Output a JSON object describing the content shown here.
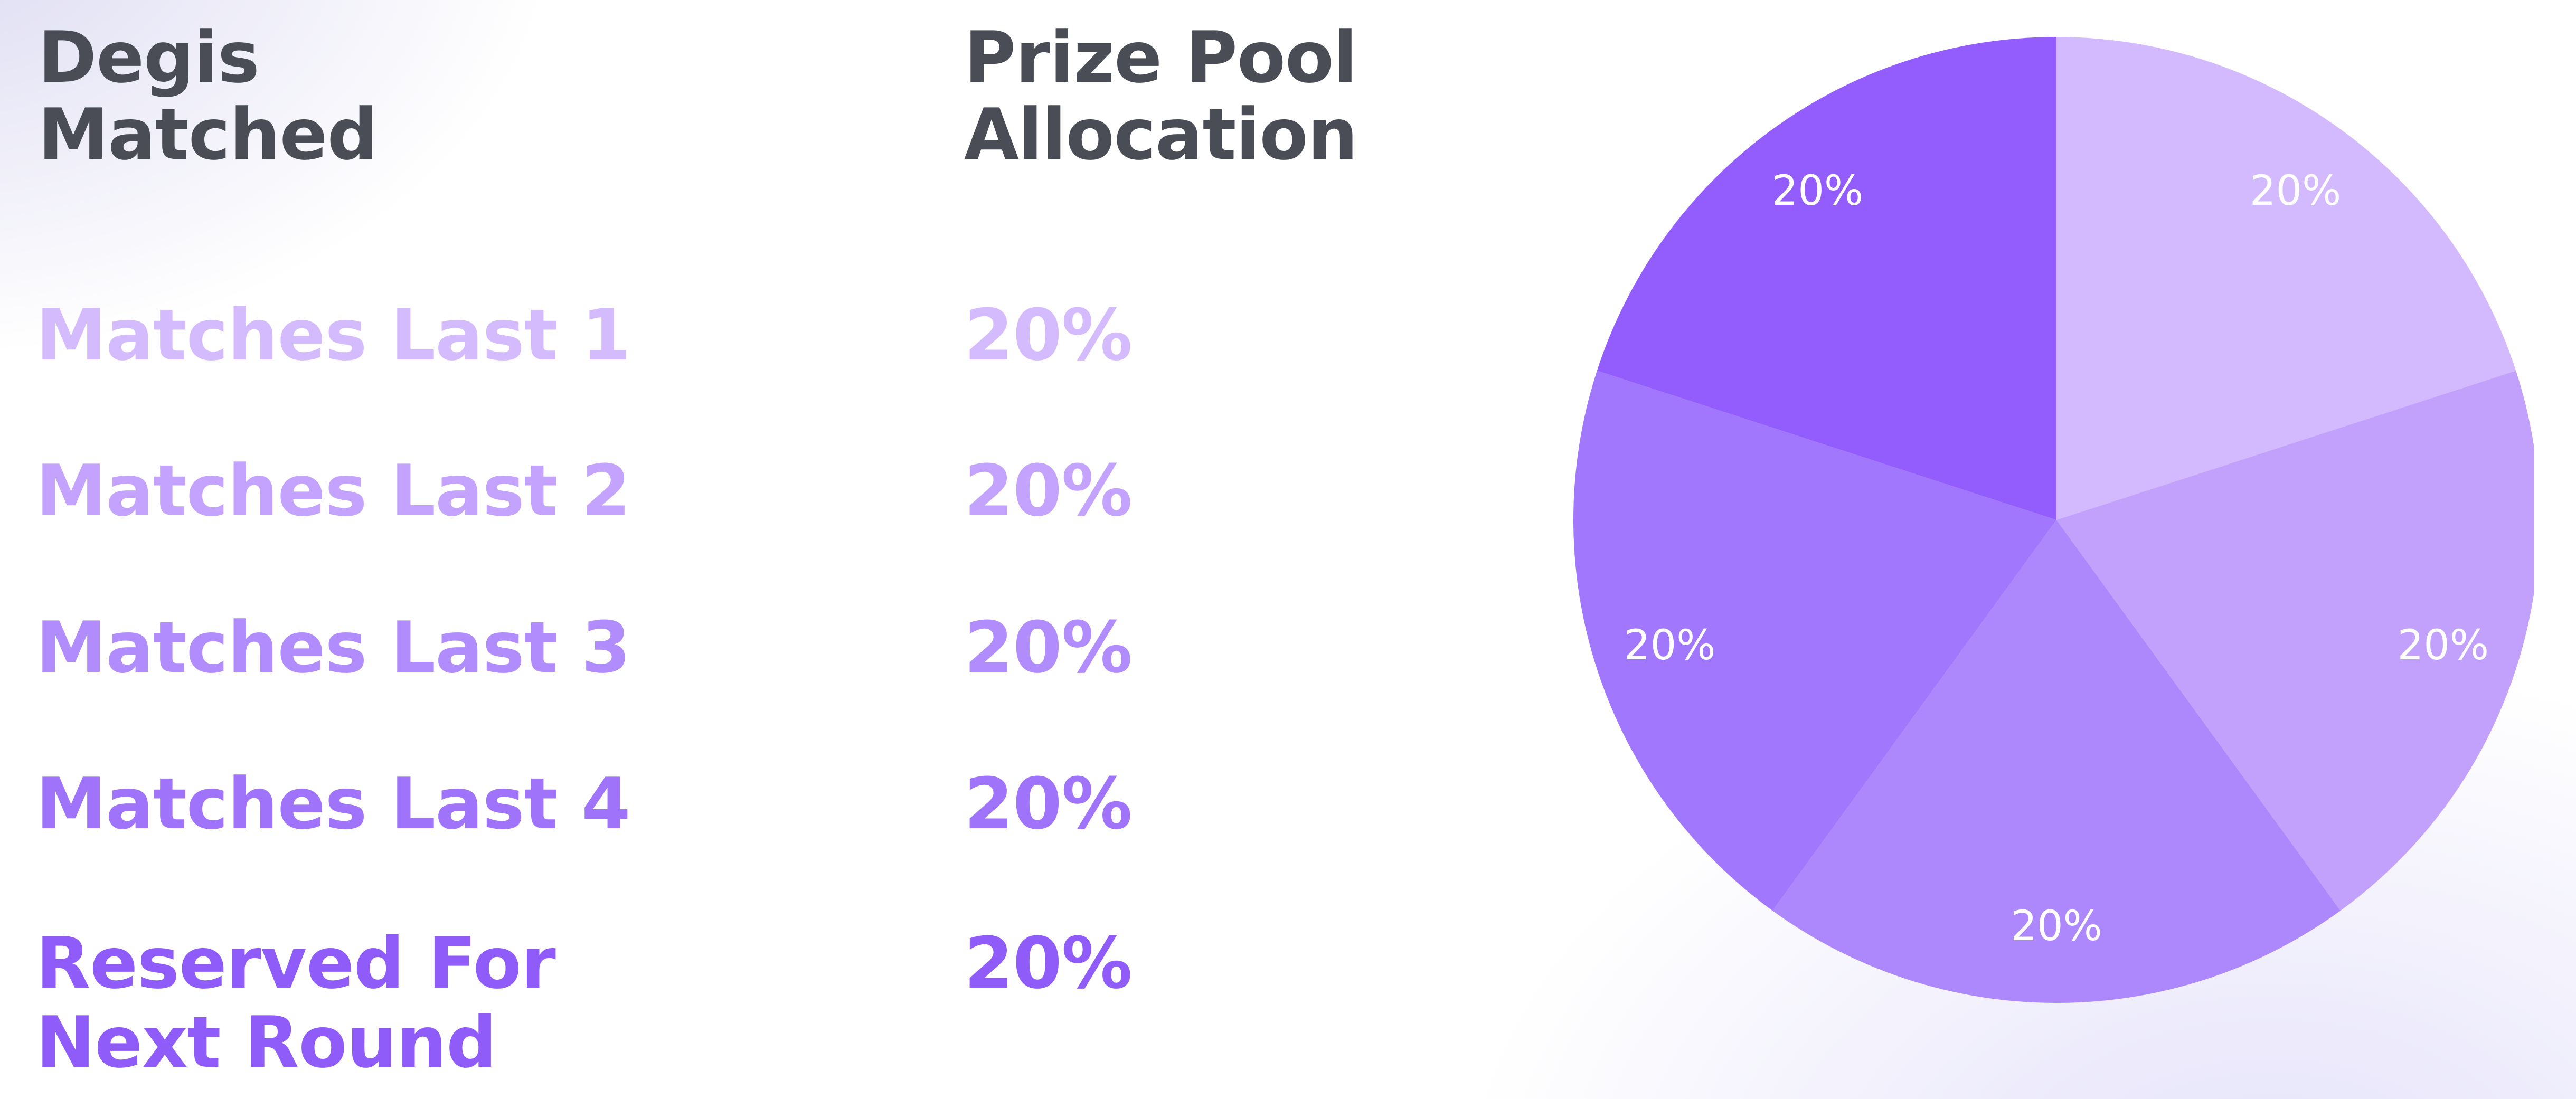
{
  "headers": {
    "degis_matched": "Degis\nMatched",
    "prize_pool": "Prize Pool\nAllocation"
  },
  "rows": [
    {
      "label": "Matches Last 1",
      "value": "20%",
      "color": "#d4bbfd"
    },
    {
      "label": "Matches Last 2",
      "value": "20%",
      "color": "#c3a3fd"
    },
    {
      "label": "Matches Last 3",
      "value": "20%",
      "color": "#b08cfc"
    },
    {
      "label": "Matches Last 4",
      "value": "20%",
      "color": "#9f74fb"
    },
    {
      "label": "Reserved For\nNext Round",
      "value": "20%",
      "color": "#8f5cfa"
    }
  ],
  "chart_data": {
    "type": "pie",
    "categories": [
      "Matches Last 1",
      "Matches Last 2",
      "Matches Last 3",
      "Matches Last 4",
      "Reserved For Next Round"
    ],
    "values": [
      20,
      20,
      20,
      20,
      20
    ],
    "labels": [
      "20%",
      "20%",
      "20%",
      "20%",
      "20%"
    ],
    "colors": [
      "#d3b9fe",
      "#c2a1fd",
      "#ad87fc",
      "#a177fd",
      "#935cfc"
    ],
    "start": "12 o'clock",
    "direction": "clockwise",
    "title": "",
    "legend": "none"
  }
}
